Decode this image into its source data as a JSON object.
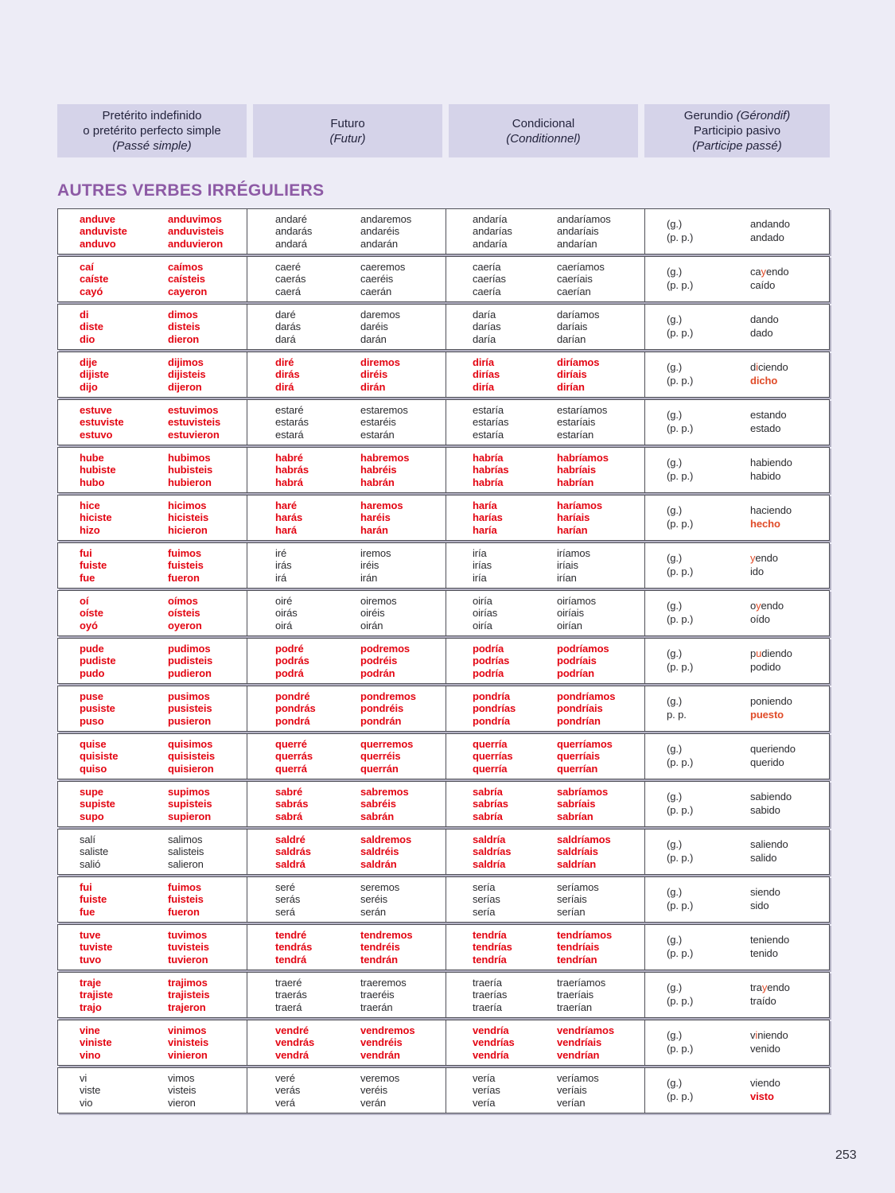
{
  "page": {
    "number": "253"
  },
  "section_title": "AUTRES VERBES IRRÉGULIERS",
  "header_columns": [
    {
      "lines": [
        [
          {
            "t": "Pretérito indefinido"
          }
        ],
        [
          {
            "t": "o pretérito perfecto simple"
          }
        ],
        [
          {
            "t": "(Passé simple)",
            "i": true
          }
        ]
      ]
    },
    {
      "lines": [
        [
          {
            "t": "Futuro"
          }
        ],
        [
          {
            "t": "(Futur)",
            "i": true
          }
        ]
      ]
    },
    {
      "lines": [
        [
          {
            "t": "Condicional"
          }
        ],
        [
          {
            "t": "(Conditionnel)",
            "i": true
          }
        ]
      ]
    },
    {
      "lines": [
        [
          {
            "t": "Gerundio "
          },
          {
            "t": "(Gérondif)",
            "i": true
          }
        ],
        [
          {
            "t": "Participio pasivo"
          }
        ],
        [
          {
            "t": "(Participe passé)",
            "i": true
          }
        ]
      ]
    }
  ],
  "colors": {
    "page_background": "#edecf6",
    "header_box": "#d5d3e9",
    "title_purple": "#8d5aa5",
    "irregular_red": "#e30613",
    "highlight_orange": "#e04b28",
    "body_text": "#2a2a2e",
    "cell_border": "#4f4f57"
  },
  "verbs": [
    {
      "preterite": {
        "color": "red",
        "singular": [
          "anduve",
          "anduviste",
          "anduvo"
        ],
        "plural": [
          "anduvimos",
          "anduvisteis",
          "anduvieron"
        ]
      },
      "future": {
        "color": "black",
        "singular": [
          "andaré",
          "andarás",
          "andará"
        ],
        "plural": [
          "andaremos",
          "andaréis",
          "andarán"
        ]
      },
      "conditional": {
        "color": "black",
        "singular": [
          "andaría",
          "andarías",
          "andaría"
        ],
        "plural": [
          "andaríamos",
          "andaríais",
          "andarían"
        ]
      },
      "gerund_labels": [
        "(g.)",
        "(p. p.)"
      ],
      "gerund": {
        "pre": "andando",
        "hl": "",
        "post": ""
      },
      "participle": {
        "text": "andado",
        "color": "black"
      }
    },
    {
      "preterite": {
        "color": "red",
        "singular": [
          "caí",
          "caíste",
          "cayó"
        ],
        "plural": [
          "caímos",
          "caísteis",
          "cayeron"
        ]
      },
      "future": {
        "color": "black",
        "singular": [
          "caeré",
          "caerás",
          "caerá"
        ],
        "plural": [
          "caeremos",
          "caeréis",
          "caerán"
        ]
      },
      "conditional": {
        "color": "black",
        "singular": [
          "caería",
          "caerías",
          "caería"
        ],
        "plural": [
          "caeríamos",
          "caeríais",
          "caerían"
        ]
      },
      "gerund_labels": [
        "(g.)",
        "(p. p.)"
      ],
      "gerund": {
        "pre": "ca",
        "hl": "y",
        "post": "endo"
      },
      "participle": {
        "text": "caído",
        "color": "black"
      }
    },
    {
      "preterite": {
        "color": "red",
        "singular": [
          "di",
          "diste",
          "dio"
        ],
        "plural": [
          "dimos",
          "disteis",
          "dieron"
        ]
      },
      "future": {
        "color": "black",
        "singular": [
          "daré",
          "darás",
          "dará"
        ],
        "plural": [
          "daremos",
          "daréis",
          "darán"
        ]
      },
      "conditional": {
        "color": "black",
        "singular": [
          "daría",
          "darías",
          "daría"
        ],
        "plural": [
          "daríamos",
          "daríais",
          "darían"
        ]
      },
      "gerund_labels": [
        "(g.)",
        "(p. p.)"
      ],
      "gerund": {
        "pre": "dando",
        "hl": "",
        "post": ""
      },
      "participle": {
        "text": "dado",
        "color": "black"
      }
    },
    {
      "preterite": {
        "color": "red",
        "singular": [
          "dije",
          "dijiste",
          "dijo"
        ],
        "plural": [
          "dijimos",
          "dijisteis",
          "dijeron"
        ]
      },
      "future": {
        "color": "red",
        "singular": [
          "diré",
          "dirás",
          "dirá"
        ],
        "plural": [
          "diremos",
          "diréis",
          "dirán"
        ]
      },
      "conditional": {
        "color": "red",
        "singular": [
          "diría",
          "dirías",
          "diría"
        ],
        "plural": [
          "diríamos",
          "diríais",
          "dirían"
        ]
      },
      "gerund_labels": [
        "(g.)",
        "(p. p.)"
      ],
      "gerund": {
        "pre": "d",
        "hl": "i",
        "post": "ciendo"
      },
      "participle": {
        "text": "dicho",
        "color": "orange"
      }
    },
    {
      "preterite": {
        "color": "red",
        "singular": [
          "estuve",
          "estuviste",
          "estuvo"
        ],
        "plural": [
          "estuvimos",
          "estuvisteis",
          "estuvieron"
        ]
      },
      "future": {
        "color": "black",
        "singular": [
          "estaré",
          "estarás",
          "estará"
        ],
        "plural": [
          "estaremos",
          "estaréis",
          "estarán"
        ]
      },
      "conditional": {
        "color": "black",
        "singular": [
          "estaría",
          "estarías",
          "estaría"
        ],
        "plural": [
          "estaríamos",
          "estaríais",
          "estarían"
        ]
      },
      "gerund_labels": [
        "(g.)",
        "(p. p.)"
      ],
      "gerund": {
        "pre": "estando",
        "hl": "",
        "post": ""
      },
      "participle": {
        "text": "estado",
        "color": "black"
      }
    },
    {
      "preterite": {
        "color": "red",
        "singular": [
          "hube",
          "hubiste",
          "hubo"
        ],
        "plural": [
          "hubimos",
          "hubisteis",
          "hubieron"
        ]
      },
      "future": {
        "color": "red",
        "singular": [
          "habré",
          "habrás",
          "habrá"
        ],
        "plural": [
          "habremos",
          "habréis",
          "habrán"
        ]
      },
      "conditional": {
        "color": "red",
        "singular": [
          "habría",
          "habrías",
          "habría"
        ],
        "plural": [
          "habríamos",
          "habríais",
          "habrían"
        ]
      },
      "gerund_labels": [
        "(g.)",
        "(p. p.)"
      ],
      "gerund": {
        "pre": "habiendo",
        "hl": "",
        "post": ""
      },
      "participle": {
        "text": "habido",
        "color": "black"
      }
    },
    {
      "preterite": {
        "color": "red",
        "singular": [
          "hice",
          "hiciste",
          "hizo"
        ],
        "plural": [
          "hicimos",
          "hicisteis",
          "hicieron"
        ]
      },
      "future": {
        "color": "red",
        "singular": [
          "haré",
          "harás",
          "hará"
        ],
        "plural": [
          "haremos",
          "haréis",
          "harán"
        ]
      },
      "conditional": {
        "color": "red",
        "singular": [
          "haría",
          "harías",
          "haría"
        ],
        "plural": [
          "haríamos",
          "haríais",
          "harían"
        ]
      },
      "gerund_labels": [
        "(g.)",
        "(p. p.)"
      ],
      "gerund": {
        "pre": "haciendo",
        "hl": "",
        "post": ""
      },
      "participle": {
        "text": "hecho",
        "color": "orange"
      }
    },
    {
      "preterite": {
        "color": "red",
        "singular": [
          "fui",
          "fuiste",
          "fue"
        ],
        "plural": [
          "fuimos",
          "fuisteis",
          "fueron"
        ]
      },
      "future": {
        "color": "black",
        "singular": [
          "iré",
          "irás",
          "irá"
        ],
        "plural": [
          "iremos",
          "iréis",
          "irán"
        ]
      },
      "conditional": {
        "color": "black",
        "singular": [
          "iría",
          "irías",
          "iría"
        ],
        "plural": [
          "iríamos",
          "iríais",
          "irían"
        ]
      },
      "gerund_labels": [
        "(g.)",
        "(p. p.)"
      ],
      "gerund": {
        "pre": "",
        "hl": "y",
        "post": "endo"
      },
      "participle": {
        "text": "ido",
        "color": "black"
      }
    },
    {
      "preterite": {
        "color": "red",
        "singular": [
          "oí",
          "oíste",
          "oyó"
        ],
        "plural": [
          "oímos",
          "oísteis",
          "oyeron"
        ]
      },
      "future": {
        "color": "black",
        "singular": [
          "oiré",
          "oirás",
          "oirá"
        ],
        "plural": [
          "oiremos",
          "oiréis",
          "oirán"
        ]
      },
      "conditional": {
        "color": "black",
        "singular": [
          "oiría",
          "oirías",
          "oiría"
        ],
        "plural": [
          "oiríamos",
          "oiríais",
          "oirían"
        ]
      },
      "gerund_labels": [
        "(g.)",
        "(p. p.)"
      ],
      "gerund": {
        "pre": "o",
        "hl": "y",
        "post": "endo"
      },
      "participle": {
        "text": "oído",
        "color": "black"
      }
    },
    {
      "preterite": {
        "color": "red",
        "singular": [
          "pude",
          "pudiste",
          "pudo"
        ],
        "plural": [
          "pudimos",
          "pudisteis",
          "pudieron"
        ]
      },
      "future": {
        "color": "red",
        "singular": [
          "podré",
          "podrás",
          "podrá"
        ],
        "plural": [
          "podremos",
          "podréis",
          "podrán"
        ]
      },
      "conditional": {
        "color": "red",
        "singular": [
          "podría",
          "podrías",
          "podría"
        ],
        "plural": [
          "podríamos",
          "podríais",
          "podrían"
        ]
      },
      "gerund_labels": [
        "(g.)",
        "(p. p.)"
      ],
      "gerund": {
        "pre": "p",
        "hl": "u",
        "post": "diendo"
      },
      "participle": {
        "text": "podido",
        "color": "black"
      }
    },
    {
      "preterite": {
        "color": "red",
        "singular": [
          "puse",
          "pusiste",
          "puso"
        ],
        "plural": [
          "pusimos",
          "pusisteis",
          "pusieron"
        ]
      },
      "future": {
        "color": "red",
        "singular": [
          "pondré",
          "pondrás",
          "pondrá"
        ],
        "plural": [
          "pondremos",
          "pondréis",
          "pondrán"
        ]
      },
      "conditional": {
        "color": "red",
        "singular": [
          "pondría",
          "pondrías",
          "pondría"
        ],
        "plural": [
          "pondríamos",
          "pondríais",
          "pondrían"
        ]
      },
      "gerund_labels": [
        "(g.)",
        "p. p."
      ],
      "gerund": {
        "pre": "poniendo",
        "hl": "",
        "post": ""
      },
      "participle": {
        "text": "puesto",
        "color": "orange"
      }
    },
    {
      "preterite": {
        "color": "red",
        "singular": [
          "quise",
          "quisiste",
          "quiso"
        ],
        "plural": [
          "quisimos",
          "quisisteis",
          "quisieron"
        ]
      },
      "future": {
        "color": "red",
        "singular": [
          "querré",
          "querrás",
          "querrá"
        ],
        "plural": [
          "querremos",
          "querréis",
          "querrán"
        ]
      },
      "conditional": {
        "color": "red",
        "singular": [
          "querría",
          "querrías",
          "querría"
        ],
        "plural": [
          "querríamos",
          "querríais",
          "querrían"
        ]
      },
      "gerund_labels": [
        "(g.)",
        "(p. p.)"
      ],
      "gerund": {
        "pre": "queriendo",
        "hl": "",
        "post": ""
      },
      "participle": {
        "text": "querido",
        "color": "black"
      }
    },
    {
      "preterite": {
        "color": "red",
        "singular": [
          "supe",
          "supiste",
          "supo"
        ],
        "plural": [
          "supimos",
          "supisteis",
          "supieron"
        ]
      },
      "future": {
        "color": "red",
        "singular": [
          "sabré",
          "sabrás",
          "sabrá"
        ],
        "plural": [
          "sabremos",
          "sabréis",
          "sabrán"
        ]
      },
      "conditional": {
        "color": "red",
        "singular": [
          "sabría",
          "sabrías",
          "sabría"
        ],
        "plural": [
          "sabríamos",
          "sabríais",
          "sabrían"
        ]
      },
      "gerund_labels": [
        "(g.)",
        "(p. p.)"
      ],
      "gerund": {
        "pre": "sabiendo",
        "hl": "",
        "post": ""
      },
      "participle": {
        "text": "sabido",
        "color": "black"
      }
    },
    {
      "preterite": {
        "color": "black",
        "singular": [
          "salí",
          "saliste",
          "salió"
        ],
        "plural": [
          "salimos",
          "salisteis",
          "salieron"
        ]
      },
      "future": {
        "color": "red",
        "singular": [
          "saldré",
          "saldrás",
          "saldrá"
        ],
        "plural": [
          "saldremos",
          "saldréis",
          "saldrán"
        ]
      },
      "conditional": {
        "color": "red",
        "singular": [
          "saldría",
          "saldrías",
          "saldría"
        ],
        "plural": [
          "saldríamos",
          "saldríais",
          "saldrían"
        ]
      },
      "gerund_labels": [
        "(g.)",
        "(p. p.)"
      ],
      "gerund": {
        "pre": "saliendo",
        "hl": "",
        "post": ""
      },
      "participle": {
        "text": "salido",
        "color": "black"
      }
    },
    {
      "preterite": {
        "color": "red",
        "singular": [
          "fui",
          "fuiste",
          "fue"
        ],
        "plural": [
          "fuimos",
          "fuisteis",
          "fueron"
        ]
      },
      "future": {
        "color": "black",
        "singular": [
          "seré",
          "serás",
          "será"
        ],
        "plural": [
          "seremos",
          "seréis",
          "serán"
        ]
      },
      "conditional": {
        "color": "black",
        "singular": [
          "sería",
          "serías",
          "sería"
        ],
        "plural": [
          "seríamos",
          "seríais",
          "serían"
        ]
      },
      "gerund_labels": [
        "(g.)",
        "(p. p.)"
      ],
      "gerund": {
        "pre": "siendo",
        "hl": "",
        "post": ""
      },
      "participle": {
        "text": "sido",
        "color": "black"
      }
    },
    {
      "preterite": {
        "color": "red",
        "singular": [
          "tuve",
          "tuviste",
          "tuvo"
        ],
        "plural": [
          "tuvimos",
          "tuvisteis",
          "tuvieron"
        ]
      },
      "future": {
        "color": "red",
        "singular": [
          "tendré",
          "tendrás",
          "tendrá"
        ],
        "plural": [
          "tendremos",
          "tendréis",
          "tendrán"
        ]
      },
      "conditional": {
        "color": "red",
        "singular": [
          "tendría",
          "tendrías",
          "tendría"
        ],
        "plural": [
          "tendríamos",
          "tendríais",
          "tendrían"
        ]
      },
      "gerund_labels": [
        "(g.)",
        "(p. p.)"
      ],
      "gerund": {
        "pre": "teniendo",
        "hl": "",
        "post": ""
      },
      "participle": {
        "text": "tenido",
        "color": "black"
      }
    },
    {
      "preterite": {
        "color": "red",
        "singular": [
          "traje",
          "trajiste",
          "trajo"
        ],
        "plural": [
          "trajimos",
          "trajisteis",
          "trajeron"
        ]
      },
      "future": {
        "color": "black",
        "singular": [
          "traeré",
          "traerás",
          "traerá"
        ],
        "plural": [
          "traeremos",
          "traeréis",
          "traerán"
        ]
      },
      "conditional": {
        "color": "black",
        "singular": [
          "traería",
          "traerías",
          "traería"
        ],
        "plural": [
          "traeríamos",
          "traeríais",
          "traerían"
        ]
      },
      "gerund_labels": [
        "(g.)",
        "(p. p.)"
      ],
      "gerund": {
        "pre": "tra",
        "hl": "y",
        "post": "endo"
      },
      "participle": {
        "text": "traído",
        "color": "black"
      }
    },
    {
      "preterite": {
        "color": "red",
        "singular": [
          "vine",
          "viniste",
          "vino"
        ],
        "plural": [
          "vinimos",
          "vinisteis",
          "vinieron"
        ]
      },
      "future": {
        "color": "red",
        "singular": [
          "vendré",
          "vendrás",
          "vendrá"
        ],
        "plural": [
          "vendremos",
          "vendréis",
          "vendrán"
        ]
      },
      "conditional": {
        "color": "red",
        "singular": [
          "vendría",
          "vendrías",
          "vendría"
        ],
        "plural": [
          "vendríamos",
          "vendríais",
          "vendrían"
        ]
      },
      "gerund_labels": [
        "(g.)",
        "(p. p.)"
      ],
      "gerund": {
        "pre": "v",
        "hl": "i",
        "post": "niendo"
      },
      "participle": {
        "text": "venido",
        "color": "black"
      }
    },
    {
      "preterite": {
        "color": "black",
        "singular": [
          "vi",
          "viste",
          "vio"
        ],
        "plural": [
          "vimos",
          "visteis",
          "vieron"
        ]
      },
      "future": {
        "color": "black",
        "singular": [
          "veré",
          "verás",
          "verá"
        ],
        "plural": [
          "veremos",
          "veréis",
          "verán"
        ]
      },
      "conditional": {
        "color": "black",
        "singular": [
          "vería",
          "verías",
          "vería"
        ],
        "plural": [
          "veríamos",
          "veríais",
          "verían"
        ]
      },
      "gerund_labels": [
        "(g.)",
        "(p. p.)"
      ],
      "gerund": {
        "pre": "viendo",
        "hl": "",
        "post": ""
      },
      "participle": {
        "text": "visto",
        "color": "red"
      }
    }
  ]
}
